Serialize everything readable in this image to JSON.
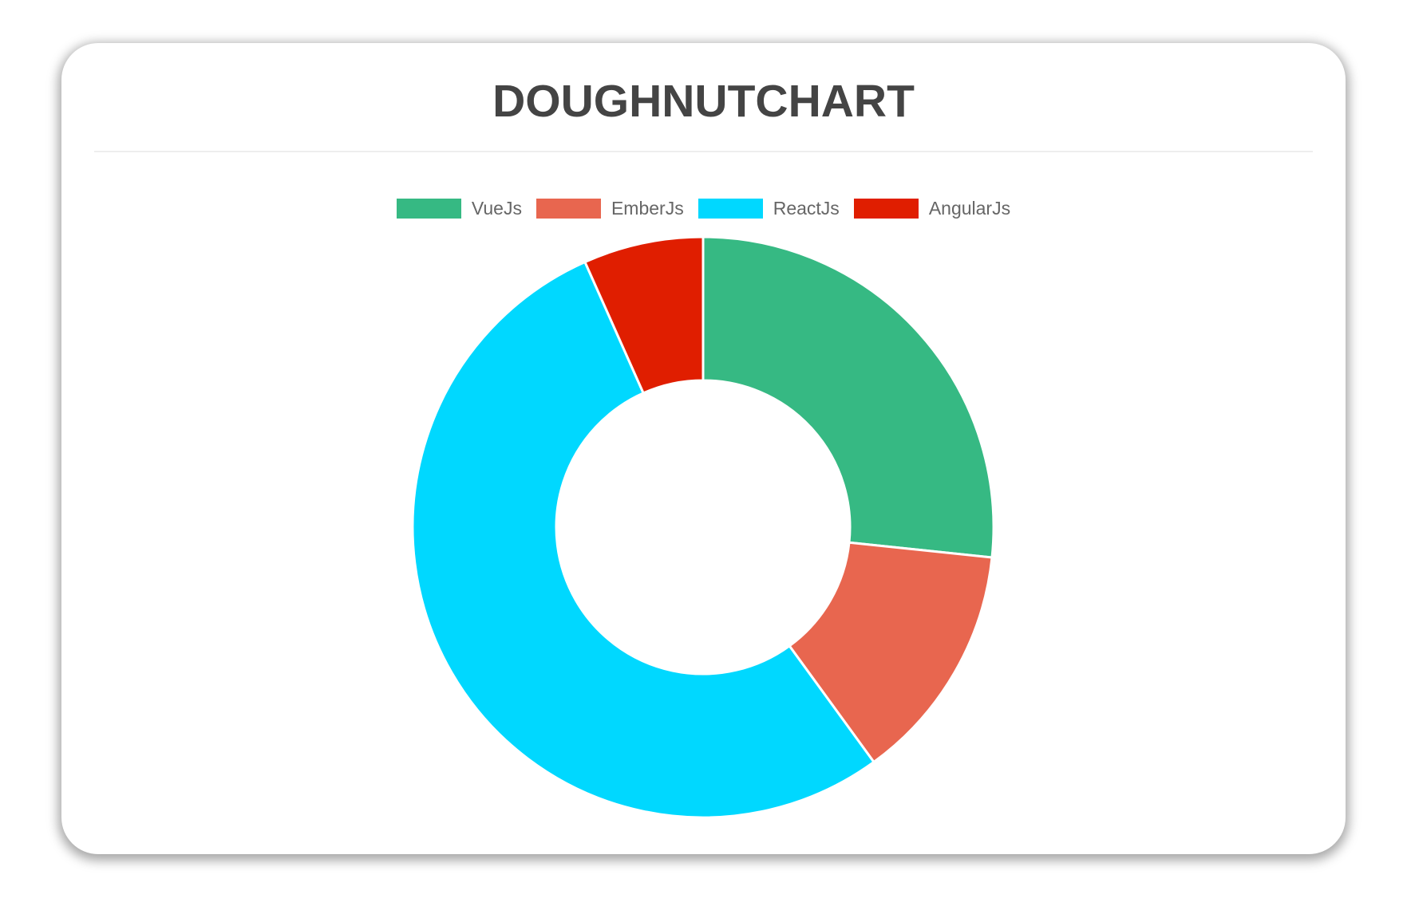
{
  "chart_data": {
    "type": "doughnut",
    "title": "DOUGHNUTCHART",
    "categories": [
      "VueJs",
      "EmberJs",
      "ReactJs",
      "AngularJs"
    ],
    "values": [
      40,
      20,
      80,
      10
    ],
    "colors": [
      "#36B983",
      "#E8664F",
      "#00D8FF",
      "#E01E00"
    ],
    "legend": "top"
  }
}
